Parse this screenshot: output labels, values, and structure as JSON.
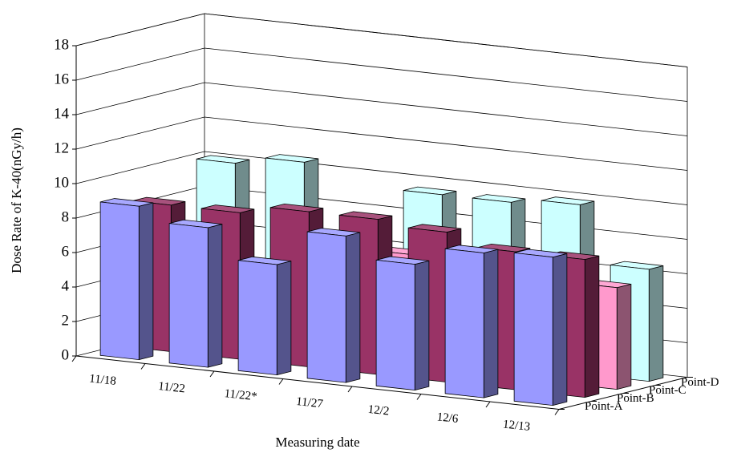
{
  "chart_data": {
    "type": "bar3d",
    "y_label": "Dose Rate of K-40(nGy/h)",
    "x_label": "Measuring date",
    "categories": [
      "11/18",
      "11/22",
      "11/22*",
      "11/27",
      "12/2",
      "12/6",
      "12/13"
    ],
    "series": [
      {
        "name": "Point-A",
        "color": "#9999ff",
        "values": [
          8.9,
          8.1,
          6.4,
          8.5,
          7.3,
          8.4,
          8.6
        ]
      },
      {
        "name": "Point-B",
        "color": "#993366",
        "values": [
          8.5,
          8.5,
          9.0,
          9.0,
          8.7,
          8.0,
          8.0
        ]
      },
      {
        "name": "Point-C",
        "color": "#ff99cc",
        "values": [
          null,
          null,
          7.0,
          6.5,
          6.5,
          6.6,
          5.9
        ]
      },
      {
        "name": "Point-D",
        "color": "#ccffff",
        "values": [
          10.0,
          10.5,
          null,
          9.5,
          9.5,
          9.8,
          6.5
        ]
      }
    ],
    "ylim": [
      0,
      18
    ],
    "yticks": [
      0,
      2,
      4,
      6,
      8,
      10,
      12,
      14,
      16,
      18
    ],
    "grid": true
  }
}
